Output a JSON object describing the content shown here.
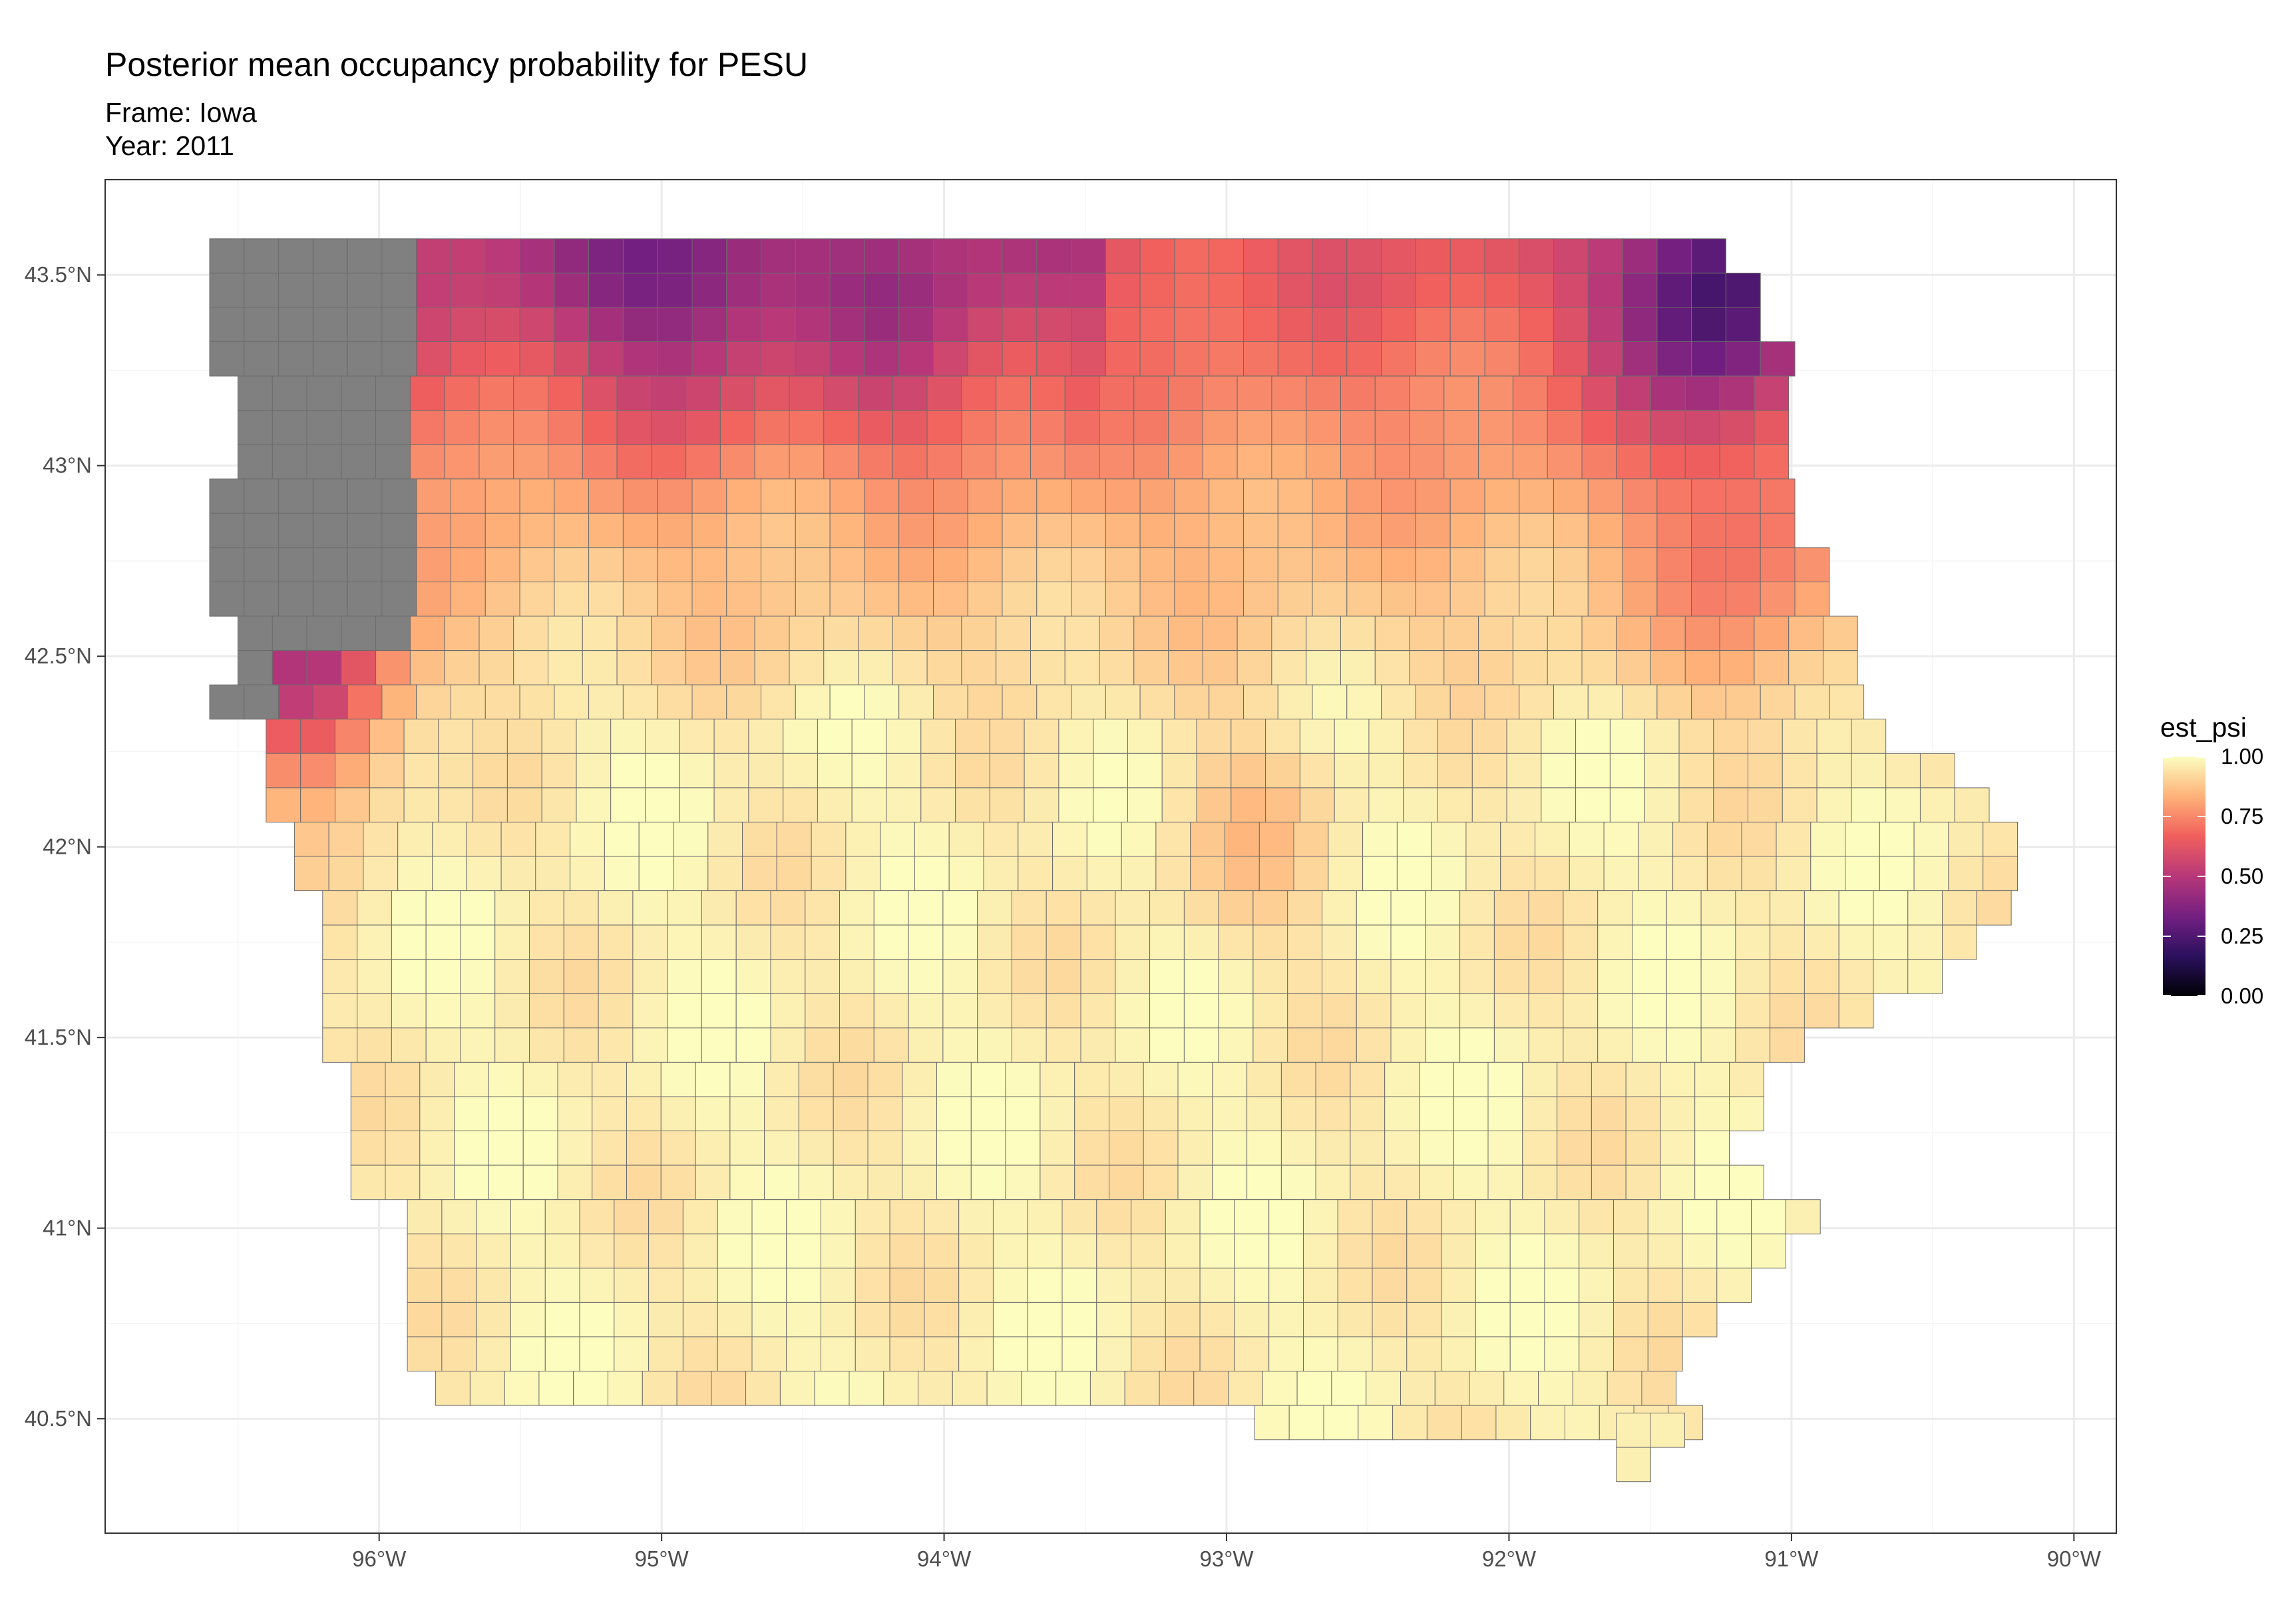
{
  "title": "Posterior mean occupancy probability for PESU",
  "subtitle": [
    "Frame: Iowa",
    "Year: 2011"
  ],
  "colors": {
    "na_fill": "#808080",
    "cell_border": "#6b6b6b",
    "grid": "#ebebeb",
    "panel_border": "#333333",
    "palette_magma": [
      "#000004",
      "#2c115f",
      "#721f81",
      "#b73779",
      "#f1605d",
      "#feb078",
      "#fcfdbf"
    ]
  },
  "chart_data": {
    "type": "heatmap",
    "map_region": "Iowa",
    "title": "Posterior mean occupancy probability for PESU",
    "x_axis": {
      "ticks": [
        -96,
        -95,
        -94,
        -93,
        -92,
        -91,
        -90
      ],
      "tick_labels": [
        "96°W",
        "95°W",
        "94°W",
        "93°W",
        "92°W",
        "91°W",
        "90°W"
      ],
      "range": [
        -96.97,
        -89.85
      ]
    },
    "y_axis": {
      "ticks": [
        40.5,
        41,
        41.5,
        42,
        42.5,
        43,
        43.5
      ],
      "tick_labels": [
        "40.5°N",
        "41°N",
        "41.5°N",
        "42°N",
        "42.5°N",
        "43°N",
        "43.5°N"
      ],
      "range": [
        40.2,
        43.75
      ]
    },
    "grid": true,
    "legend": {
      "title": "est_psi",
      "position": "right",
      "range": [
        0,
        1
      ],
      "breaks": [
        1.0,
        0.75,
        0.5,
        0.25,
        0.0
      ],
      "break_labels": [
        "1.00",
        "0.75",
        "0.50",
        "0.25",
        "0.00"
      ],
      "palette": "magma"
    },
    "grid_cells": {
      "rows": 35,
      "cols": 52,
      "description_of_values": "est_psi per cell, estimated from color",
      "row_lon_ranges": [
        {
          "row": 0,
          "lat": 43.55,
          "lon": [
            -96.6,
            -91.25
          ]
        },
        {
          "row": 1,
          "lat": 43.46,
          "lon": [
            -96.6,
            -91.1
          ]
        },
        {
          "row": 2,
          "lat": 43.37,
          "lon": [
            -96.6,
            -91.1
          ]
        },
        {
          "row": 3,
          "lat": 43.28,
          "lon": [
            -96.6,
            -91.0
          ]
        },
        {
          "row": 4,
          "lat": 43.19,
          "lon": [
            -96.5,
            -91.1
          ]
        },
        {
          "row": 5,
          "lat": 43.1,
          "lon": [
            -96.5,
            -91.1
          ]
        },
        {
          "row": 6,
          "lat": 43.01,
          "lon": [
            -96.5,
            -91.0
          ]
        },
        {
          "row": 7,
          "lat": 42.92,
          "lon": [
            -96.6,
            -91.0
          ]
        },
        {
          "row": 8,
          "lat": 42.83,
          "lon": [
            -96.6,
            -91.0
          ]
        },
        {
          "row": 9,
          "lat": 42.74,
          "lon": [
            -96.6,
            -90.9
          ]
        },
        {
          "row": 10,
          "lat": 42.65,
          "lon": [
            -96.6,
            -90.9
          ]
        },
        {
          "row": 11,
          "lat": 42.56,
          "lon": [
            -96.5,
            -90.8
          ]
        },
        {
          "row": 12,
          "lat": 42.47,
          "lon": [
            -96.5,
            -90.8
          ]
        },
        {
          "row": 13,
          "lat": 42.38,
          "lon": [
            -96.6,
            -90.75
          ]
        },
        {
          "row": 14,
          "lat": 42.29,
          "lon": [
            -96.4,
            -90.7
          ]
        },
        {
          "row": 15,
          "lat": 42.2,
          "lon": [
            -96.4,
            -90.45
          ]
        },
        {
          "row": 16,
          "lat": 42.11,
          "lon": [
            -96.4,
            -90.3
          ]
        },
        {
          "row": 17,
          "lat": 42.02,
          "lon": [
            -96.3,
            -90.2
          ]
        },
        {
          "row": 18,
          "lat": 41.93,
          "lon": [
            -96.3,
            -90.2
          ]
        },
        {
          "row": 19,
          "lat": 41.84,
          "lon": [
            -96.2,
            -90.3
          ]
        },
        {
          "row": 20,
          "lat": 41.75,
          "lon": [
            -96.2,
            -90.4
          ]
        },
        {
          "row": 21,
          "lat": 41.66,
          "lon": [
            -96.2,
            -90.5
          ]
        },
        {
          "row": 22,
          "lat": 41.57,
          "lon": [
            -96.2,
            -90.75
          ]
        },
        {
          "row": 23,
          "lat": 41.48,
          "lon": [
            -96.2,
            -91.0
          ]
        },
        {
          "row": 24,
          "lat": 41.39,
          "lon": [
            -96.1,
            -91.15
          ]
        },
        {
          "row": 25,
          "lat": 41.3,
          "lon": [
            -96.1,
            -91.15
          ]
        },
        {
          "row": 26,
          "lat": 41.21,
          "lon": [
            -96.1,
            -91.2
          ]
        },
        {
          "row": 27,
          "lat": 41.12,
          "lon": [
            -96.1,
            -91.1
          ]
        },
        {
          "row": 28,
          "lat": 41.03,
          "lon": [
            -95.9,
            -91.0
          ]
        },
        {
          "row": 29,
          "lat": 40.94,
          "lon": [
            -95.9,
            -91.1
          ]
        },
        {
          "row": 30,
          "lat": 40.85,
          "lon": [
            -95.9,
            -91.2
          ]
        },
        {
          "row": 31,
          "lat": 40.76,
          "lon": [
            -95.9,
            -91.3
          ]
        },
        {
          "row": 32,
          "lat": 40.67,
          "lon": [
            -95.9,
            -91.4
          ]
        },
        {
          "row": 33,
          "lat": 40.58,
          "lon": [
            -95.8,
            -91.5
          ]
        },
        {
          "row": 34,
          "lat": 40.49,
          "lon": [
            -92.9,
            -91.4
          ]
        }
      ]
    }
  }
}
